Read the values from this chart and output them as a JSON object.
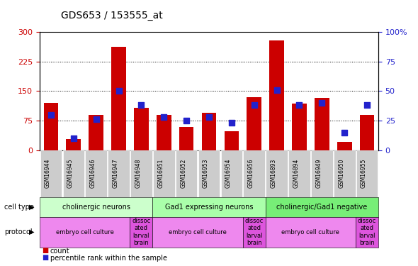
{
  "title": "GDS653 / 153555_at",
  "samples": [
    "GSM16944",
    "GSM16945",
    "GSM16946",
    "GSM16947",
    "GSM16948",
    "GSM16951",
    "GSM16952",
    "GSM16953",
    "GSM16954",
    "GSM16956",
    "GSM16893",
    "GSM16894",
    "GSM16949",
    "GSM16950",
    "GSM16955"
  ],
  "counts": [
    120,
    28,
    90,
    262,
    108,
    90,
    60,
    95,
    48,
    135,
    278,
    118,
    132,
    22,
    90
  ],
  "percentiles": [
    30,
    10,
    26,
    50,
    38,
    28,
    25,
    28,
    23,
    38,
    51,
    38,
    40,
    15,
    38
  ],
  "ylim_left": [
    0,
    300
  ],
  "ylim_right": [
    0,
    100
  ],
  "yticks_left": [
    0,
    75,
    150,
    225,
    300
  ],
  "yticks_right": [
    0,
    25,
    50,
    75,
    100
  ],
  "bar_color": "#cc0000",
  "dot_color": "#2222cc",
  "cell_type_groups": [
    {
      "label": "cholinergic neurons",
      "start": 0,
      "end": 5,
      "color": "#ccffcc"
    },
    {
      "label": "Gad1 expressing neurons",
      "start": 5,
      "end": 10,
      "color": "#aaffaa"
    },
    {
      "label": "cholinergic/Gad1 negative",
      "start": 10,
      "end": 15,
      "color": "#77ee77"
    }
  ],
  "protocol_groups": [
    {
      "label": "embryo cell culture",
      "start": 0,
      "end": 4,
      "color": "#ee88ee"
    },
    {
      "label": "dissoc\nated\nlarval\nbrain",
      "start": 4,
      "end": 5,
      "color": "#dd55dd"
    },
    {
      "label": "embryo cell culture",
      "start": 5,
      "end": 9,
      "color": "#ee88ee"
    },
    {
      "label": "dissoc\nated\nlarval\nbrain",
      "start": 9,
      "end": 10,
      "color": "#dd55dd"
    },
    {
      "label": "embryo cell culture",
      "start": 10,
      "end": 14,
      "color": "#ee88ee"
    },
    {
      "label": "dissoc\nated\nlarval\nbrain",
      "start": 14,
      "end": 15,
      "color": "#dd55dd"
    }
  ],
  "tick_label_color_left": "#cc0000",
  "tick_label_color_right": "#2222cc",
  "xtick_bg_color": "#cccccc",
  "legend_count_color": "#cc0000",
  "legend_pct_color": "#2222cc"
}
